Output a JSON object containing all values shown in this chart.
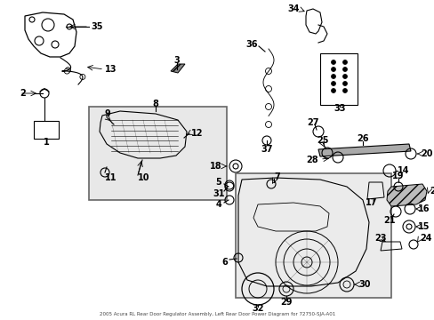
{
  "title": "2005 Acura RL Rear Door Regulator Assembly, Left Rear Door Power Diagram for 72750-SJA-A01",
  "bg_color": "#ffffff",
  "line_color": "#000000",
  "figsize": [
    4.89,
    3.6
  ],
  "dpi": 100
}
